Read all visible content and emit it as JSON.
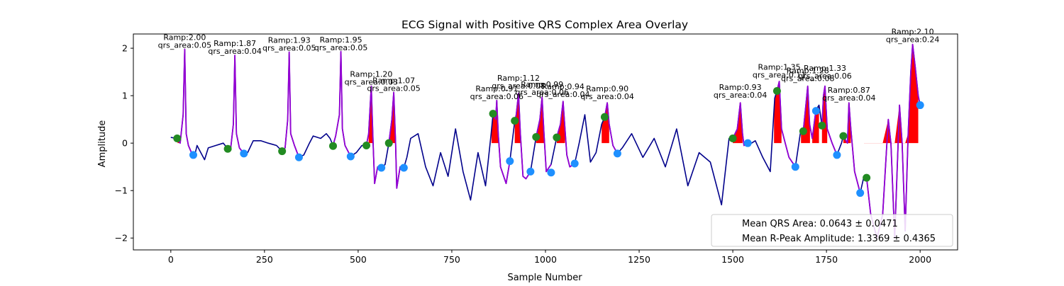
{
  "chart_data": {
    "type": "line",
    "title": "ECG Signal with Positive QRS Complex Area Overlay",
    "xlabel": "Sample Number",
    "ylabel": "Amplitude",
    "xlim": [
      -100,
      2100
    ],
    "ylim": [
      -2.25,
      2.3
    ],
    "xticks": [
      0,
      250,
      500,
      750,
      1000,
      1250,
      1500,
      1750,
      2000
    ],
    "yticks": [
      -2,
      -1,
      0,
      1,
      2
    ],
    "grid": false,
    "colors": {
      "signal": "#00008b",
      "qrs_segment": "#9400d3",
      "area_fill": "#ff0000",
      "q_marker": "#228b22",
      "s_marker": "#1e90ff"
    },
    "signal_path": [
      [
        0,
        0.12
      ],
      [
        15,
        0.1
      ],
      [
        25,
        0.0
      ],
      [
        33,
        0.6
      ],
      [
        37,
        1.98
      ],
      [
        41,
        0.2
      ],
      [
        47,
        -0.05
      ],
      [
        55,
        -0.2
      ],
      [
        64,
        -0.25
      ],
      [
        70,
        -0.05
      ],
      [
        80,
        -0.2
      ],
      [
        90,
        -0.35
      ],
      [
        100,
        -0.1
      ],
      [
        120,
        -0.05
      ],
      [
        140,
        0.0
      ],
      [
        152,
        -0.12
      ],
      [
        160,
        -0.1
      ],
      [
        167,
        0.4
      ],
      [
        171,
        1.85
      ],
      [
        175,
        0.2
      ],
      [
        183,
        -0.1
      ],
      [
        195,
        -0.22
      ],
      [
        205,
        -0.2
      ],
      [
        220,
        0.05
      ],
      [
        240,
        0.05
      ],
      [
        260,
        0.0
      ],
      [
        282,
        -0.05
      ],
      [
        297,
        -0.17
      ],
      [
        305,
        -0.1
      ],
      [
        312,
        0.5
      ],
      [
        316,
        1.92
      ],
      [
        320,
        0.2
      ],
      [
        330,
        -0.05
      ],
      [
        342,
        -0.3
      ],
      [
        355,
        -0.25
      ],
      [
        370,
        0.0
      ],
      [
        380,
        0.15
      ],
      [
        400,
        0.1
      ],
      [
        415,
        0.2
      ],
      [
        425,
        0.1
      ],
      [
        433,
        -0.05
      ],
      [
        440,
        0.15
      ],
      [
        450,
        0.6
      ],
      [
        454,
        1.93
      ],
      [
        458,
        0.3
      ],
      [
        465,
        -0.05
      ],
      [
        480,
        -0.28
      ],
      [
        495,
        -0.2
      ],
      [
        510,
        -0.05
      ],
      [
        522,
        -0.05
      ],
      [
        528,
        0.2
      ],
      [
        535,
        1.2
      ],
      [
        540,
        0.0
      ],
      [
        544,
        -0.85
      ],
      [
        552,
        -0.5
      ],
      [
        562,
        -0.52
      ],
      [
        572,
        -0.45
      ],
      [
        582,
        0.0
      ],
      [
        590,
        0.5
      ],
      [
        595,
        1.07
      ],
      [
        600,
        0.0
      ],
      [
        603,
        -0.95
      ],
      [
        612,
        -0.5
      ],
      [
        622,
        -0.52
      ],
      [
        630,
        -0.3
      ],
      [
        640,
        0.1
      ],
      [
        660,
        0.2
      ],
      [
        680,
        -0.5
      ],
      [
        700,
        -0.9
      ],
      [
        720,
        -0.2
      ],
      [
        740,
        -0.7
      ],
      [
        760,
        0.3
      ],
      [
        780,
        -0.6
      ],
      [
        800,
        -1.2
      ],
      [
        820,
        -0.2
      ],
      [
        840,
        -0.9
      ],
      [
        855,
        0.2
      ],
      [
        860,
        0.62
      ],
      [
        867,
        0.5
      ],
      [
        870,
        0.9
      ],
      [
        874,
        0.2
      ],
      [
        880,
        -0.5
      ],
      [
        895,
        -0.85
      ],
      [
        905,
        -0.38
      ],
      [
        918,
        0.47
      ],
      [
        922,
        0.6
      ],
      [
        928,
        1.05
      ],
      [
        933,
        0.2
      ],
      [
        940,
        -0.7
      ],
      [
        948,
        -0.75
      ],
      [
        960,
        -0.6
      ],
      [
        975,
        0.13
      ],
      [
        985,
        0.5
      ],
      [
        991,
        0.97
      ],
      [
        996,
        0.2
      ],
      [
        1002,
        -0.6
      ],
      [
        1015,
        -0.45
      ],
      [
        1030,
        0.12
      ],
      [
        1040,
        0.4
      ],
      [
        1047,
        0.88
      ],
      [
        1052,
        0.3
      ],
      [
        1057,
        -0.25
      ],
      [
        1065,
        -0.5
      ],
      [
        1078,
        -0.43
      ],
      [
        1090,
        0.0
      ],
      [
        1105,
        0.6
      ],
      [
        1120,
        -0.4
      ],
      [
        1135,
        -0.2
      ],
      [
        1150,
        0.4
      ],
      [
        1158,
        0.55
      ],
      [
        1165,
        0.85
      ],
      [
        1170,
        0.4
      ],
      [
        1180,
        -0.05
      ],
      [
        1192,
        -0.22
      ],
      [
        1205,
        -0.1
      ],
      [
        1230,
        0.2
      ],
      [
        1260,
        -0.3
      ],
      [
        1290,
        0.1
      ],
      [
        1320,
        -0.5
      ],
      [
        1350,
        0.3
      ],
      [
        1380,
        -0.9
      ],
      [
        1410,
        -0.2
      ],
      [
        1440,
        -0.4
      ],
      [
        1470,
        -1.3
      ],
      [
        1490,
        0.1
      ],
      [
        1500,
        0.1
      ],
      [
        1512,
        0.3
      ],
      [
        1520,
        0.85
      ],
      [
        1526,
        0.2
      ],
      [
        1530,
        -0.05
      ],
      [
        1540,
        0.0
      ],
      [
        1550,
        0.0
      ],
      [
        1560,
        0.05
      ],
      [
        1580,
        -0.3
      ],
      [
        1600,
        -0.6
      ],
      [
        1612,
        0.95
      ],
      [
        1618,
        1.1
      ],
      [
        1624,
        1.3
      ],
      [
        1630,
        0.3
      ],
      [
        1640,
        0.0
      ],
      [
        1650,
        -0.3
      ],
      [
        1667,
        -0.5
      ],
      [
        1680,
        0.2
      ],
      [
        1688,
        0.25
      ],
      [
        1695,
        0.8
      ],
      [
        1700,
        1.2
      ],
      [
        1705,
        0.4
      ],
      [
        1712,
        0.1
      ],
      [
        1722,
        0.7
      ],
      [
        1730,
        0.8
      ],
      [
        1738,
        0.37
      ],
      [
        1742,
        1.0
      ],
      [
        1746,
        1.2
      ],
      [
        1752,
        0.3
      ],
      [
        1765,
        0.0
      ],
      [
        1778,
        -0.25
      ],
      [
        1790,
        0.0
      ],
      [
        1795,
        0.15
      ],
      [
        1806,
        0.0
      ],
      [
        1810,
        0.85
      ],
      [
        1815,
        0.3
      ],
      [
        1825,
        -0.6
      ],
      [
        1840,
        -1.05
      ],
      [
        1850,
        -0.7
      ],
      [
        1857,
        -0.73
      ],
      [
        1868,
        -1.5
      ],
      [
        1885,
        -2.0
      ],
      [
        1900,
        -1.5
      ],
      [
        1915,
        0.5
      ],
      [
        1922,
        0.0
      ],
      [
        1932,
        -2.0
      ],
      [
        1945,
        0.8
      ],
      [
        1952,
        0.0
      ],
      [
        1960,
        -1.85
      ],
      [
        1968,
        0.2
      ],
      [
        1975,
        1.5
      ],
      [
        1980,
        2.08
      ],
      [
        1987,
        1.6
      ],
      [
        1995,
        1.0
      ],
      [
        2000,
        0.8
      ]
    ],
    "qrs_segments": [
      [
        17,
        64
      ],
      [
        152,
        195
      ],
      [
        297,
        342
      ],
      [
        433,
        480
      ],
      [
        522,
        562
      ],
      [
        582,
        622
      ],
      [
        860,
        905
      ],
      [
        918,
        960
      ],
      [
        975,
        1015
      ],
      [
        1030,
        1078
      ],
      [
        1158,
        1192
      ],
      [
        1500,
        1540
      ],
      [
        1618,
        1667
      ],
      [
        1688,
        1722
      ],
      [
        1738,
        1778
      ],
      [
        1795,
        1840
      ],
      [
        1857,
        2000
      ]
    ],
    "area_regions": [
      [
        18,
        26
      ],
      [
        528,
        540
      ],
      [
        582,
        600
      ],
      [
        856,
        875
      ],
      [
        918,
        933
      ],
      [
        975,
        996
      ],
      [
        1030,
        1052
      ],
      [
        1150,
        1170
      ],
      [
        1500,
        1526
      ],
      [
        1610,
        1630
      ],
      [
        1682,
        1706
      ],
      [
        1712,
        1730
      ],
      [
        1738,
        1752
      ],
      [
        1795,
        1815
      ],
      [
        1850,
        1995
      ]
    ],
    "q_points": [
      [
        17,
        0.1
      ],
      [
        152,
        -0.12
      ],
      [
        297,
        -0.17
      ],
      [
        433,
        -0.06
      ],
      [
        522,
        -0.05
      ],
      [
        582,
        0.0
      ],
      [
        860,
        0.62
      ],
      [
        918,
        0.47
      ],
      [
        975,
        0.13
      ],
      [
        1030,
        0.12
      ],
      [
        1158,
        0.55
      ],
      [
        1500,
        0.1
      ],
      [
        1618,
        1.1
      ],
      [
        1688,
        0.25
      ],
      [
        1738,
        0.37
      ],
      [
        1795,
        0.15
      ],
      [
        1857,
        -0.73
      ]
    ],
    "s_points": [
      [
        60,
        -0.25
      ],
      [
        195,
        -0.22
      ],
      [
        342,
        -0.3
      ],
      [
        480,
        -0.28
      ],
      [
        562,
        -0.52
      ],
      [
        622,
        -0.52
      ],
      [
        905,
        -0.38
      ],
      [
        960,
        -0.6
      ],
      [
        1015,
        -0.62
      ],
      [
        1078,
        -0.43
      ],
      [
        1192,
        -0.22
      ],
      [
        1540,
        0.0
      ],
      [
        1667,
        -0.5
      ],
      [
        1722,
        0.68
      ],
      [
        1778,
        -0.25
      ],
      [
        1840,
        -1.05
      ],
      [
        2000,
        0.8
      ]
    ],
    "annotations": [
      {
        "x": 37,
        "y": 1.98,
        "ramp": "Ramp:2.00",
        "area": "qrs_area:0.05"
      },
      {
        "x": 171,
        "y": 1.85,
        "ramp": "Ramp:1.87",
        "area": "qrs_area:0.04"
      },
      {
        "x": 316,
        "y": 1.92,
        "ramp": "Ramp:1.93",
        "area": "qrs_area:0.05"
      },
      {
        "x": 454,
        "y": 1.93,
        "ramp": "Ramp:1.95",
        "area": "qrs_area:0.05"
      },
      {
        "x": 535,
        "y": 1.2,
        "ramp": "Ramp:1.20",
        "area": "qrs_area:0.03"
      },
      {
        "x": 595,
        "y": 1.07,
        "ramp": "Ramp:1.07",
        "area": "qrs_area:0.05"
      },
      {
        "x": 870,
        "y": 0.9,
        "ramp": "Ramp:0.91",
        "area": "qrs_area:0.06"
      },
      {
        "x": 928,
        "y": 1.12,
        "ramp": "Ramp:1.12",
        "area": "qrs_area:0.08"
      },
      {
        "x": 991,
        "y": 0.99,
        "ramp": "Ramp:0.99",
        "area": "qrs_area:0.06"
      },
      {
        "x": 1047,
        "y": 0.94,
        "ramp": "Ramp:0.94",
        "area": "qrs_area:0.04"
      },
      {
        "x": 1165,
        "y": 0.9,
        "ramp": "Ramp:0.90",
        "area": "qrs_area:0.04"
      },
      {
        "x": 1520,
        "y": 0.93,
        "ramp": "Ramp:0.93",
        "area": "qrs_area:0.04"
      },
      {
        "x": 1624,
        "y": 1.35,
        "ramp": "Ramp:1.35",
        "area": "qrs_area:0.11"
      },
      {
        "x": 1700,
        "y": 1.28,
        "ramp": "Ramp:1.28",
        "area": "qrs_area:0.08"
      },
      {
        "x": 1746,
        "y": 1.33,
        "ramp": "Ramp:1.33",
        "area": "qrs_area:0.06"
      },
      {
        "x": 1810,
        "y": 0.87,
        "ramp": "Ramp:0.87",
        "area": "qrs_area:0.04"
      },
      {
        "x": 1980,
        "y": 2.1,
        "ramp": "Ramp:2.10",
        "area": "qrs_area:0.24"
      }
    ],
    "legend": {
      "placement": "lower-right",
      "entries": [
        "Mean QRS Area: 0.0643 ± 0.0471",
        "Mean R-Peak Amplitude: 1.3369 ± 0.4365"
      ]
    }
  }
}
